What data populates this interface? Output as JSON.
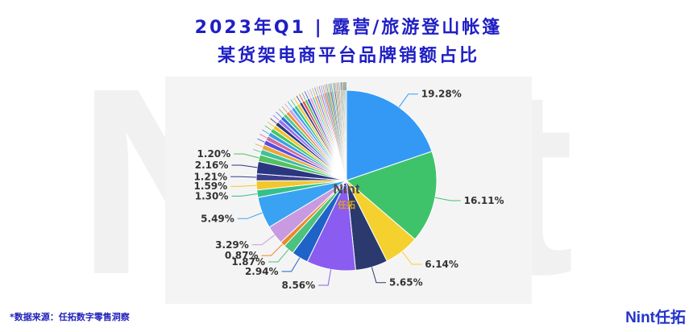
{
  "title_line1": "2023年Q1 | 露营/旅游登山帐篷",
  "title_line2": "某货架电商平台品牌销额占比",
  "source": "*数据来源：任拓数字零售洞察",
  "brand": "Nint任拓",
  "watermark": "Nint",
  "center_logo": {
    "top": "Nint",
    "bottom": "任拓"
  },
  "chart_data": {
    "type": "pie",
    "title": "2023年Q1 | 露营/旅游登山帐篷 某货架电商平台品牌销额占比",
    "slices": [
      {
        "value": 19.28,
        "label": "19.28%",
        "color": "#3399f5"
      },
      {
        "value": 16.11,
        "label": "16.11%",
        "color": "#3fc36a"
      },
      {
        "value": 6.14,
        "label": "6.14%",
        "color": "#f5d130"
      },
      {
        "value": 5.65,
        "label": "5.65%",
        "color": "#2a3a6e"
      },
      {
        "value": 8.56,
        "label": "8.56%",
        "color": "#8a5cf0"
      },
      {
        "value": 2.94,
        "label": "2.94%",
        "color": "#1f62c8"
      },
      {
        "value": 1.87,
        "label": "1.87%",
        "color": "#4cc27f"
      },
      {
        "value": 0.87,
        "label": "0.87%",
        "color": "#e98a2a"
      },
      {
        "value": 3.29,
        "label": "3.29%",
        "color": "#c79ae2"
      },
      {
        "value": 5.49,
        "label": "5.49%",
        "color": "#3aa2f2"
      },
      {
        "value": 1.3,
        "label": "1.30%",
        "color": "#34c08a"
      },
      {
        "value": 1.59,
        "label": "1.59%",
        "color": "#f2c62d"
      },
      {
        "value": 1.21,
        "label": "1.21%",
        "color": "#3b3f8c"
      },
      {
        "value": 2.16,
        "label": "2.16%",
        "color": "#2a3680"
      },
      {
        "value": 1.2,
        "label": "1.20%",
        "color": "#55c060"
      },
      {
        "value": 0.95,
        "label": "",
        "color": "#3ec0a0"
      },
      {
        "value": 0.9,
        "label": "",
        "color": "#e8a93a"
      },
      {
        "value": 0.85,
        "label": "",
        "color": "#5a4ce0"
      },
      {
        "value": 0.8,
        "label": "",
        "color": "#d36c9c"
      },
      {
        "value": 0.78,
        "label": "",
        "color": "#35a0e8"
      },
      {
        "value": 0.75,
        "label": "",
        "color": "#48c55e"
      },
      {
        "value": 0.72,
        "label": "",
        "color": "#f0c02a"
      },
      {
        "value": 0.7,
        "label": "",
        "color": "#2a3a7a"
      },
      {
        "value": 0.68,
        "label": "",
        "color": "#9b6df0"
      },
      {
        "value": 0.66,
        "label": "",
        "color": "#2c74d8"
      },
      {
        "value": 0.64,
        "label": "",
        "color": "#52c88a"
      },
      {
        "value": 0.62,
        "label": "",
        "color": "#ee8f3a"
      },
      {
        "value": 0.6,
        "label": "",
        "color": "#c9a0e8"
      },
      {
        "value": 0.58,
        "label": "",
        "color": "#3aa6f0"
      },
      {
        "value": 0.56,
        "label": "",
        "color": "#3dc28e"
      },
      {
        "value": 0.54,
        "label": "",
        "color": "#f0c832"
      },
      {
        "value": 0.52,
        "label": "",
        "color": "#3b3f8c"
      },
      {
        "value": 0.5,
        "label": "",
        "color": "#e0505a"
      },
      {
        "value": 0.48,
        "label": "",
        "color": "#59c060"
      },
      {
        "value": 0.46,
        "label": "",
        "color": "#4050d0"
      },
      {
        "value": 0.44,
        "label": "",
        "color": "#e59ad0"
      },
      {
        "value": 0.42,
        "label": "",
        "color": "#6fd0c0"
      },
      {
        "value": 0.4,
        "label": "",
        "color": "#f5a050"
      },
      {
        "value": 0.38,
        "label": "",
        "color": "#7a8ae8"
      },
      {
        "value": 0.36,
        "label": "",
        "color": "#9ad06a"
      },
      {
        "value": 0.34,
        "label": "",
        "color": "#d06ab0"
      },
      {
        "value": 0.32,
        "label": "",
        "color": "#60b0f0"
      },
      {
        "value": 0.3,
        "label": "",
        "color": "#f08070"
      },
      {
        "value": 0.28,
        "label": "",
        "color": "#a0a0a0"
      },
      {
        "value": 0.27,
        "label": "",
        "color": "#50a0a0"
      },
      {
        "value": 0.26,
        "label": "",
        "color": "#c0c040"
      },
      {
        "value": 0.25,
        "label": "",
        "color": "#8060c0"
      },
      {
        "value": 0.24,
        "label": "",
        "color": "#40c0e0"
      },
      {
        "value": 0.23,
        "label": "",
        "color": "#e0c080"
      },
      {
        "value": 0.22,
        "label": "",
        "color": "#6070a0"
      },
      {
        "value": 0.21,
        "label": "",
        "color": "#b0d080"
      },
      {
        "value": 0.2,
        "label": "",
        "color": "#e08080"
      },
      {
        "value": 0.19,
        "label": "",
        "color": "#80c0a0"
      },
      {
        "value": 0.18,
        "label": "",
        "color": "#c0a0e0"
      },
      {
        "value": 0.17,
        "label": "",
        "color": "#f0d060"
      },
      {
        "value": 0.16,
        "label": "",
        "color": "#4070c0"
      },
      {
        "value": 0.15,
        "label": "",
        "color": "#a0e0c0"
      },
      {
        "value": 0.14,
        "label": "",
        "color": "#d08040"
      },
      {
        "value": 0.13,
        "label": "",
        "color": "#9090d0"
      },
      {
        "value": 0.12,
        "label": "",
        "color": "#60c060"
      },
      {
        "value": 0.11,
        "label": "",
        "color": "#e0a0c0"
      },
      {
        "value": 0.1,
        "label": "",
        "color": "#50b0c0"
      }
    ]
  }
}
